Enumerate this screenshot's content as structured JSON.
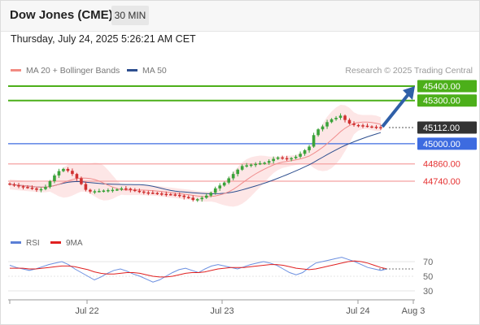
{
  "header": {
    "title": "Dow Jones (CME)",
    "timeframe": "30 MIN",
    "datetime": "Thursday, July 24, 2025 5:26:21 AM CET"
  },
  "legend": {
    "items": [
      {
        "label": "MA 20 + Bollinger Bands",
        "color": "#f28b82"
      },
      {
        "label": "MA 50",
        "color": "#2e4f8f"
      }
    ],
    "credit": "Research © 2025 Trading Central"
  },
  "rsi_legend": {
    "items": [
      {
        "label": "RSI",
        "color": "#5b7fd6"
      },
      {
        "label": "9MA",
        "color": "#e02020"
      }
    ]
  },
  "colors": {
    "resistance": "#4caf1a",
    "pivot": "#3d6be0",
    "support": "#f4a1a1",
    "support_text": "#e53030",
    "current": "#333333",
    "bollinger_fill": "#fde2e2",
    "ma20": "#f08c8c",
    "ma50": "#2e4f8f",
    "bull": "#3aa33a",
    "bear": "#d03030"
  },
  "chart_data": {
    "type": "candlestick",
    "title": "Dow Jones (CME)",
    "timeframe": "30 MIN",
    "x_tick_labels": [
      "Jul 22",
      "Jul 23",
      "Jul 24",
      "Aug 3"
    ],
    "levels": [
      {
        "value": 45400,
        "label": "45400.00",
        "kind": "resistance"
      },
      {
        "value": 45300,
        "label": "45300.00",
        "kind": "resistance"
      },
      {
        "value": 45112,
        "label": "45112.00",
        "kind": "current"
      },
      {
        "value": 45000,
        "label": "45000.00",
        "kind": "pivot"
      },
      {
        "value": 44860,
        "label": "44860.00",
        "kind": "support"
      },
      {
        "value": 44740,
        "label": "44740.00",
        "kind": "support"
      }
    ],
    "forecast_arrow": {
      "from": 45112,
      "to": 45400,
      "direction": "up"
    },
    "close_series": [
      44718,
      44712,
      44705,
      44700,
      44695,
      44690,
      44680,
      44685,
      44700,
      44740,
      44780,
      44810,
      44825,
      44812,
      44790,
      44760,
      44720,
      44680,
      44668,
      44670,
      44672,
      44675,
      44678,
      44680,
      44683,
      44690,
      44688,
      44680,
      44673,
      44668,
      44662,
      44660,
      44658,
      44655,
      44652,
      44650,
      44648,
      44645,
      44640,
      44630,
      44625,
      44610,
      44615,
      44625,
      44640,
      44660,
      44690,
      44710,
      44730,
      44760,
      44790,
      44820,
      44845,
      44850,
      44855,
      44860,
      44865,
      44868,
      44880,
      44895,
      44905,
      44900,
      44895,
      44900,
      44910,
      44930,
      44955,
      44980,
      45060,
      45100,
      45120,
      45150,
      45170,
      45180,
      45195,
      45165,
      45140,
      45130,
      45128,
      45125,
      45120,
      45118,
      45115,
      45112
    ],
    "rsi": {
      "y_ticks": [
        70,
        50,
        30
      ],
      "rsi_values": [
        65,
        62,
        60,
        58,
        60,
        63,
        66,
        68,
        70,
        66,
        60,
        55,
        50,
        45,
        49,
        54,
        58,
        60,
        57,
        53,
        50,
        46,
        42,
        45,
        50,
        55,
        59,
        61,
        58,
        55,
        60,
        64,
        66,
        64,
        62,
        60,
        63,
        66,
        68,
        70,
        68,
        65,
        60,
        55,
        52,
        55,
        62,
        68,
        70,
        72,
        74,
        76,
        73,
        70,
        66,
        62,
        60,
        58,
        60
      ],
      "ma9_values": [
        61,
        61,
        61,
        60,
        60,
        61,
        62,
        63,
        64,
        64,
        63,
        61,
        59,
        56,
        54,
        53,
        53,
        54,
        55,
        55,
        54,
        52,
        50,
        49,
        49,
        50,
        52,
        54,
        55,
        55,
        56,
        58,
        60,
        61,
        62,
        62,
        62,
        63,
        64,
        65,
        66,
        66,
        65,
        63,
        61,
        60,
        59,
        60,
        62,
        64,
        66,
        68,
        70,
        71,
        70,
        68,
        65,
        62,
        60
      ]
    }
  }
}
